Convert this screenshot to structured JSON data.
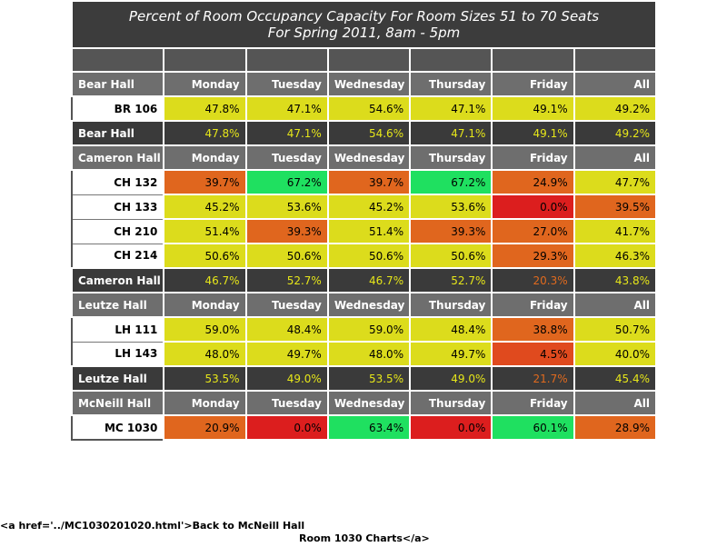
{
  "title_line1": "Percent of Room Occupancy Capacity For Room Sizes 51 to 70 Seats",
  "title_line2": "For Spring 2011, 8am - 5pm",
  "colors": {
    "yellow": "#dcdc1c",
    "orange": "#e0661e",
    "green": "#1fe060",
    "red": "#dc1e1e",
    "red_orange": "#e04a1e",
    "header_gray": "#6e6e6e",
    "summary_dark": "#3a3a3a",
    "summary_text_yellow": "#e6e619",
    "summary_text_orange": "#e06a1e"
  },
  "chart_data": {
    "type": "table",
    "columns": [
      "Monday",
      "Tuesday",
      "Wednesday",
      "Thursday",
      "Friday",
      "All"
    ],
    "halls": [
      {
        "name": "Bear Hall",
        "rooms": [
          {
            "name": "BR 106",
            "values": [
              "47.8%",
              "47.1%",
              "54.6%",
              "47.1%",
              "49.1%",
              "49.2%"
            ],
            "colors": [
              "yellow",
              "yellow",
              "yellow",
              "yellow",
              "yellow",
              "yellow"
            ]
          }
        ],
        "summary": {
          "values": [
            "47.8%",
            "47.1%",
            "54.6%",
            "47.1%",
            "49.1%",
            "49.2%"
          ],
          "colors": [
            "summary_text_yellow",
            "summary_text_yellow",
            "summary_text_yellow",
            "summary_text_yellow",
            "summary_text_yellow",
            "summary_text_yellow"
          ]
        }
      },
      {
        "name": "Cameron Hall",
        "rooms": [
          {
            "name": "CH 132",
            "values": [
              "39.7%",
              "67.2%",
              "39.7%",
              "67.2%",
              "24.9%",
              "47.7%"
            ],
            "colors": [
              "orange",
              "green",
              "orange",
              "green",
              "orange",
              "yellow"
            ]
          },
          {
            "name": "CH 133",
            "values": [
              "45.2%",
              "53.6%",
              "45.2%",
              "53.6%",
              "0.0%",
              "39.5%"
            ],
            "colors": [
              "yellow",
              "yellow",
              "yellow",
              "yellow",
              "red",
              "orange"
            ]
          },
          {
            "name": "CH 210",
            "values": [
              "51.4%",
              "39.3%",
              "51.4%",
              "39.3%",
              "27.0%",
              "41.7%"
            ],
            "colors": [
              "yellow",
              "orange",
              "yellow",
              "orange",
              "orange",
              "yellow"
            ]
          },
          {
            "name": "CH 214",
            "values": [
              "50.6%",
              "50.6%",
              "50.6%",
              "50.6%",
              "29.3%",
              "46.3%"
            ],
            "colors": [
              "yellow",
              "yellow",
              "yellow",
              "yellow",
              "orange",
              "yellow"
            ]
          }
        ],
        "summary": {
          "values": [
            "46.7%",
            "52.7%",
            "46.7%",
            "52.7%",
            "20.3%",
            "43.8%"
          ],
          "colors": [
            "summary_text_yellow",
            "summary_text_yellow",
            "summary_text_yellow",
            "summary_text_yellow",
            "summary_text_orange",
            "summary_text_yellow"
          ]
        }
      },
      {
        "name": "Leutze Hall",
        "rooms": [
          {
            "name": "LH 111",
            "values": [
              "59.0%",
              "48.4%",
              "59.0%",
              "48.4%",
              "38.8%",
              "50.7%"
            ],
            "colors": [
              "yellow",
              "yellow",
              "yellow",
              "yellow",
              "orange",
              "yellow"
            ]
          },
          {
            "name": "LH 143",
            "values": [
              "48.0%",
              "49.7%",
              "48.0%",
              "49.7%",
              "4.5%",
              "40.0%"
            ],
            "colors": [
              "yellow",
              "yellow",
              "yellow",
              "yellow",
              "red_orange",
              "yellow"
            ]
          }
        ],
        "summary": {
          "values": [
            "53.5%",
            "49.0%",
            "53.5%",
            "49.0%",
            "21.7%",
            "45.4%"
          ],
          "colors": [
            "summary_text_yellow",
            "summary_text_yellow",
            "summary_text_yellow",
            "summary_text_yellow",
            "summary_text_orange",
            "summary_text_yellow"
          ]
        }
      },
      {
        "name": "McNeill Hall",
        "rooms": [
          {
            "name": "MC 1030",
            "values": [
              "20.9%",
              "0.0%",
              "63.4%",
              "0.0%",
              "60.1%",
              "28.9%"
            ],
            "colors": [
              "orange",
              "red",
              "green",
              "red",
              "green",
              "orange"
            ]
          }
        ]
      }
    ]
  },
  "back_link_line1": "<a href='../MC1030201020.html'>Back to McNeill Hall",
  "back_link_line2": "Room 1030 Charts</a>"
}
